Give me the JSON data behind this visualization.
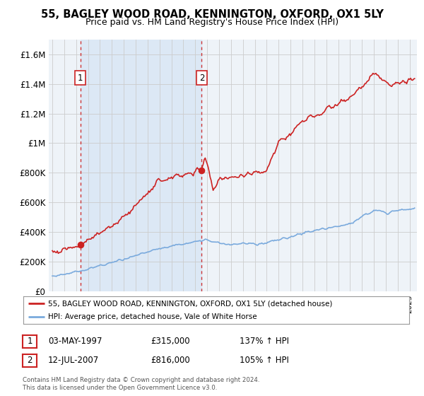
{
  "title": "55, BAGLEY WOOD ROAD, KENNINGTON, OXFORD, OX1 5LY",
  "subtitle": "Price paid vs. HM Land Registry's House Price Index (HPI)",
  "sale1": {
    "date": "03-MAY-1997",
    "price": 315000,
    "label": "1",
    "year": 1997.35
  },
  "sale2": {
    "date": "12-JUL-2007",
    "price": 816000,
    "label": "2",
    "year": 2007.54
  },
  "legend_line1": "55, BAGLEY WOOD ROAD, KENNINGTON, OXFORD, OX1 5LY (detached house)",
  "legend_line2": "HPI: Average price, detached house, Vale of White Horse",
  "table_row1": [
    "1",
    "03-MAY-1997",
    "£315,000",
    "137% ↑ HPI"
  ],
  "table_row2": [
    "2",
    "12-JUL-2007",
    "£816,000",
    "105% ↑ HPI"
  ],
  "footnote": "Contains HM Land Registry data © Crown copyright and database right 2024.\nThis data is licensed under the Open Government Licence v3.0.",
  "ylim": [
    0,
    1700000
  ],
  "yticks": [
    0,
    200000,
    400000,
    600000,
    800000,
    1000000,
    1200000,
    1400000,
    1600000
  ],
  "ytick_labels": [
    "£0",
    "£200K",
    "£400K",
    "£600K",
    "£800K",
    "£1M",
    "£1.2M",
    "£1.4M",
    "£1.6M"
  ],
  "red_color": "#cc2222",
  "blue_color": "#7aaadd",
  "dashed_color": "#cc2222",
  "shade_color": "#dce8f5",
  "bg_plot": "#eef3f8",
  "bg_fig": "#ffffff",
  "grid_color": "#cccccc",
  "title_fontsize": 10.5,
  "subtitle_fontsize": 9
}
